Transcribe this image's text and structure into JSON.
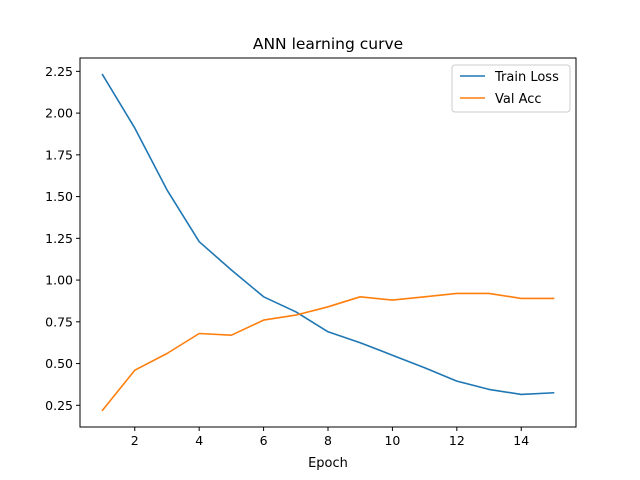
{
  "chart_data": {
    "type": "line",
    "title": "ANN learning curve",
    "xlabel": "Epoch",
    "ylabel": "",
    "x": [
      1,
      2,
      3,
      4,
      5,
      6,
      7,
      8,
      9,
      10,
      11,
      12,
      13,
      14,
      15
    ],
    "series": [
      {
        "name": "Train Loss",
        "color": "#1f77b4",
        "values": [
          2.23,
          1.91,
          1.54,
          1.23,
          1.06,
          0.9,
          0.81,
          0.69,
          0.625,
          0.55,
          0.475,
          0.395,
          0.345,
          0.315,
          0.325
        ]
      },
      {
        "name": "Val Acc",
        "color": "#ff7f0e",
        "values": [
          0.22,
          0.46,
          0.56,
          0.68,
          0.67,
          0.76,
          0.79,
          0.84,
          0.9,
          0.88,
          0.9,
          0.92,
          0.92,
          0.89,
          0.89
        ]
      }
    ],
    "xticks": [
      2,
      4,
      6,
      8,
      10,
      12,
      14
    ],
    "yticks": [
      0.25,
      0.5,
      0.75,
      1.0,
      1.25,
      1.5,
      1.75,
      2.0,
      2.25
    ],
    "ytick_labels": [
      "0.25",
      "0.50",
      "0.75",
      "1.00",
      "1.25",
      "1.50",
      "1.75",
      "2.00",
      "2.25"
    ],
    "xlim": [
      0.3,
      15.7
    ],
    "ylim": [
      0.12,
      2.33
    ],
    "grid": false,
    "legend_position": "top-right"
  }
}
